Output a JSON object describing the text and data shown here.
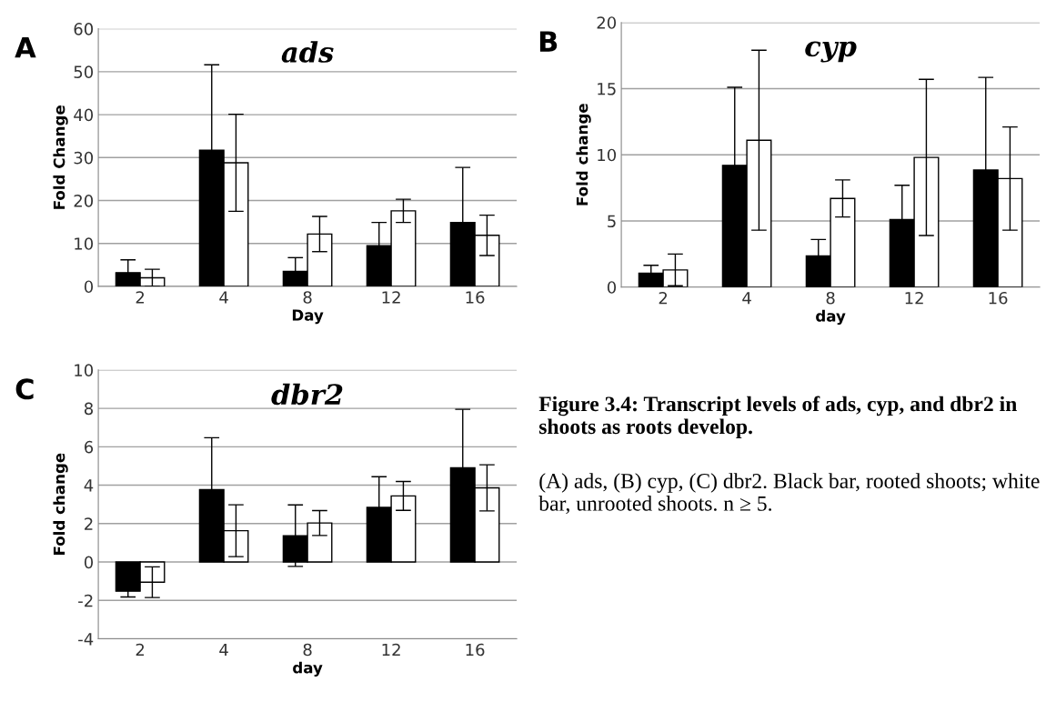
{
  "chart_data": [
    {
      "type": "bar",
      "title": "ads",
      "xlabel": "Day",
      "ylabel": "Fold Change",
      "annotations": [
        "A"
      ],
      "categories": [
        "2",
        "4",
        "8",
        "12",
        "16"
      ],
      "ylim": [
        0,
        60
      ],
      "yticks": [
        0,
        10,
        20,
        30,
        40,
        50,
        60
      ],
      "grid": "y",
      "series": [
        {
          "color": "#000000",
          "values": [
            3.2,
            31.7,
            3.5,
            9.5,
            14.9
          ],
          "errors": [
            3.0,
            19.9,
            3.2,
            5.4,
            12.8
          ]
        },
        {
          "color": "#ffffff",
          "values": [
            2.0,
            28.8,
            12.2,
            17.6,
            11.9
          ],
          "errors": [
            2.0,
            11.3,
            4.1,
            2.7,
            4.7
          ]
        }
      ]
    },
    {
      "type": "bar",
      "title": "cyp",
      "xlabel": "day",
      "ylabel": "Fold change",
      "annotations": [
        "B"
      ],
      "categories": [
        "2",
        "4",
        "8",
        "12",
        "16"
      ],
      "ylim": [
        0,
        20
      ],
      "yticks": [
        0,
        5,
        10,
        15,
        20
      ],
      "grid": "y",
      "series": [
        {
          "color": "#000000",
          "values": [
            1.05,
            9.2,
            2.35,
            5.1,
            8.85
          ],
          "errors": [
            0.6,
            5.9,
            1.25,
            2.6,
            7.0
          ]
        },
        {
          "color": "#ffffff",
          "values": [
            1.3,
            11.1,
            6.7,
            9.8,
            8.2
          ],
          "errors": [
            1.2,
            6.8,
            1.4,
            5.9,
            3.9
          ]
        }
      ]
    },
    {
      "type": "bar",
      "title": "dbr2",
      "xlabel": "day",
      "ylabel": "Fold change",
      "annotations": [
        "C"
      ],
      "categories": [
        "2",
        "4",
        "8",
        "12",
        "16"
      ],
      "ylim": [
        -4,
        10
      ],
      "yticks": [
        -4,
        -2,
        0,
        2,
        4,
        6,
        8,
        10
      ],
      "grid": "y",
      "series": [
        {
          "color": "#000000",
          "values": [
            -1.52,
            3.77,
            1.37,
            2.84,
            4.9
          ],
          "errors": [
            0.3,
            2.7,
            1.6,
            1.6,
            3.05
          ]
        },
        {
          "color": "#ffffff",
          "values": [
            -1.05,
            1.63,
            2.03,
            3.44,
            3.86
          ],
          "errors": [
            0.8,
            1.35,
            0.65,
            0.75,
            1.2
          ]
        }
      ]
    },
    {
      "type": "other",
      "annotations": [
        "Figure 3.4: Transcript levels of ads, cyp, and dbr2 in shoots as roots develop.",
        "(A) ads, (B) cyp, (C) dbr2. Black bar, rooted shoots; white bar, unrooted shoots. n ≥ 5."
      ]
    }
  ]
}
